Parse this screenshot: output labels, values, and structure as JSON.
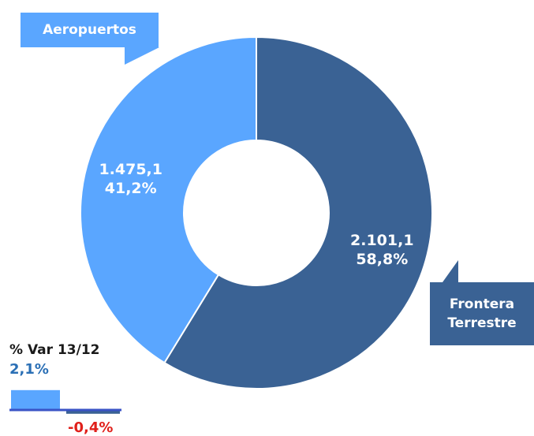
{
  "chart_data": [
    {
      "type": "pie",
      "variant": "donut",
      "slices": [
        {
          "name": "Frontera Terrestre",
          "value": 2101.1,
          "value_label": "2.101,1",
          "percent_label": "58,8%",
          "color": "#3a6294"
        },
        {
          "name": "Aeropuertos",
          "value": 1475.1,
          "value_label": "1.475,1",
          "percent_label": "41,2%",
          "color": "#5aa6ff"
        }
      ]
    },
    {
      "type": "bar",
      "title": "% Var 13/12",
      "categories": [
        "Aeropuertos",
        "Frontera Terrestre"
      ],
      "values": [
        2.1,
        -0.4
      ],
      "value_labels": [
        "2,1%",
        "-0,4%"
      ],
      "colors": [
        "#5aa6ff",
        "#3a6294"
      ],
      "baseline_color": "#3a53c6"
    }
  ],
  "callouts": {
    "air": "Aeropuertos",
    "land_line1": "Frontera",
    "land_line2": "Terrestre"
  }
}
